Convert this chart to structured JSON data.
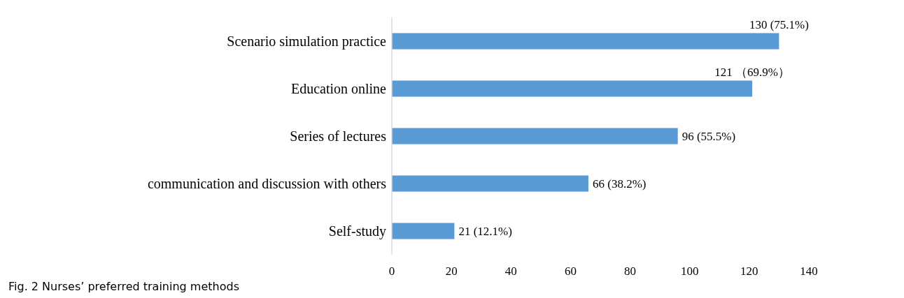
{
  "chart_data": {
    "type": "bar",
    "orientation": "horizontal",
    "categories": [
      "Scenario simulation practice",
      "Education online",
      "Series of lectures",
      "communication and discussion with others",
      "Self-study"
    ],
    "values": [
      130,
      121,
      96,
      66,
      21
    ],
    "color": "#5b9bd5",
    "value_labels": [
      "130 (75.1%)",
      "121 （69.9%）",
      "96 (55.5%)",
      "66 (38.2%)",
      "21 (12.1%)"
    ],
    "xlim": [
      0,
      140
    ],
    "xticks": [
      0,
      20,
      40,
      60,
      80,
      100,
      120,
      140
    ],
    "grid": false,
    "annotations": [
      "Fig. 2  Nurses’ preferred training methods"
    ]
  }
}
